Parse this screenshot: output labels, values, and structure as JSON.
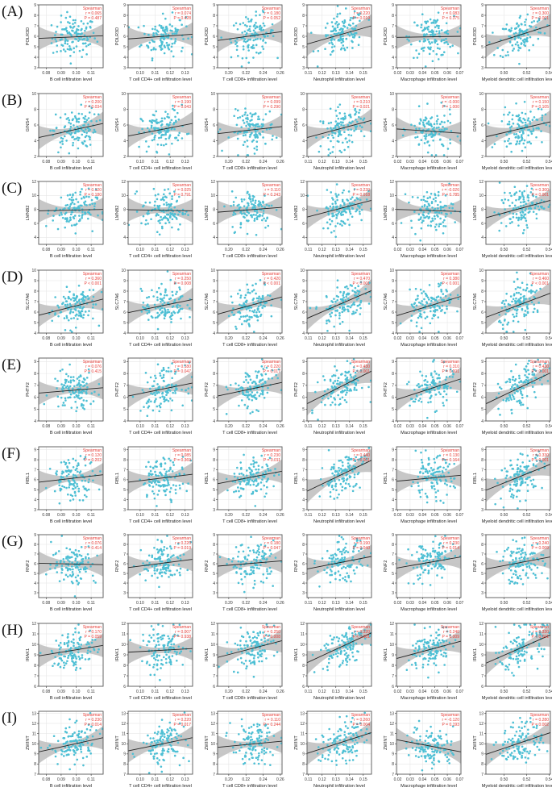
{
  "chart_data": {
    "type": "scatter",
    "layout": "grid 9 rows x 6 columns of scatter plots with linear regression line and 95% CI band",
    "point_color": "#4dbfd4",
    "line_color": "#222222",
    "band_color": "#bdbdbd",
    "annotation_color": "#e8413c",
    "grid": true,
    "method_label": "Spearman",
    "columns": [
      {
        "xlabel": "B cell infiltration level",
        "xticks": [
          "0.08",
          "0.09",
          "0.10",
          "0.11"
        ],
        "xlim": [
          0.075,
          0.118
        ]
      },
      {
        "xlabel": "T cell CD4+ cell infiltration level",
        "xticks": [
          "0.10",
          "0.11",
          "0.12",
          "0.13"
        ],
        "xlim": [
          0.092,
          0.135
        ]
      },
      {
        "xlabel": "T cell CD8+ infiltration level",
        "xticks": [
          "0.20",
          "0.22",
          "0.24",
          "0.26"
        ],
        "xlim": [
          0.187,
          0.262
        ]
      },
      {
        "xlabel": "Neutrophil infiltration level",
        "xticks": [
          "0.11",
          "0.12",
          "0.13",
          "0.14",
          "0.15"
        ],
        "xlim": [
          0.109,
          0.156
        ]
      },
      {
        "xlabel": "Macrophage infiltration level",
        "xticks": [
          "0.02",
          "0.03",
          "0.04",
          "0.05",
          "0.06",
          "0.07"
        ],
        "xlim": [
          0.019,
          0.071
        ]
      },
      {
        "xlabel": "Myeloid dendritic cell infiltration level",
        "xticks": [
          "0.50",
          "0.52",
          "0.54"
        ],
        "xlim": [
          0.484,
          0.541
        ]
      }
    ],
    "rows": [
      {
        "label": "(A)",
        "gene": "POLR3D",
        "yticks": [
          "3",
          "4",
          "5",
          "6",
          "7",
          "8",
          "9"
        ],
        "ylim": [
          3,
          9
        ],
        "stats": [
          {
            "r": "0.065",
            "p": "0.487"
          },
          {
            "r": "0.074",
            "p": "0.428"
          },
          {
            "r": "0.180",
            "p": "0.052"
          },
          {
            "r": "0.220",
            "p": "0.019"
          },
          {
            "r": "0.083",
            "p": "0.375"
          },
          {
            "r": "0.300",
            "p": "0.001"
          }
        ],
        "fit": [
          [
            5.8,
            6.05
          ],
          [
            5.75,
            6.2
          ],
          [
            5.6,
            6.45
          ],
          [
            5.25,
            7.0
          ],
          [
            5.9,
            6.0
          ],
          [
            5.1,
            7.05
          ]
        ]
      },
      {
        "label": "(B)",
        "gene": "GINS4",
        "yticks": [
          "2",
          "4",
          "6",
          "8",
          "10"
        ],
        "ylim": [
          2,
          10
        ],
        "stats": [
          {
            "r": "0.200",
            "p": "0.034"
          },
          {
            "r": "0.190",
            "p": "0.043"
          },
          {
            "r": "0.099",
            "p": "0.290"
          },
          {
            "r": "0.210",
            "p": "0.021"
          },
          {
            "r": "-0.000",
            "p": "1.000"
          },
          {
            "r": "0.150",
            "p": "0.105"
          }
        ],
        "fit": [
          [
            4.4,
            6.2
          ],
          [
            4.6,
            6.2
          ],
          [
            4.9,
            5.8
          ],
          [
            4.4,
            6.6
          ],
          [
            5.5,
            4.95
          ],
          [
            4.5,
            6.4
          ]
        ]
      },
      {
        "label": "(C)",
        "gene": "LMNB2",
        "yticks": [
          "4",
          "6",
          "8",
          "10",
          "12"
        ],
        "ylim": [
          3,
          12
        ],
        "stats": [
          {
            "r": "0.120",
            "p": "0.180"
          },
          {
            "r": "0.025",
            "p": "0.791"
          },
          {
            "r": "0.110",
            "p": "0.243"
          },
          {
            "r": "0.220",
            "p": "0.018"
          },
          {
            "r": "-0.026",
            "p": "0.785"
          },
          {
            "r": "0.300",
            "p": "0.001"
          }
        ],
        "fit": [
          [
            7.8,
            8.0
          ],
          [
            7.95,
            7.8
          ],
          [
            7.6,
            8.3
          ],
          [
            6.9,
            9.3
          ],
          [
            8.0,
            7.7
          ],
          [
            6.8,
            9.3
          ]
        ]
      },
      {
        "label": "(D)",
        "gene": "SLC7A6",
        "yticks": [
          "4",
          "5",
          "6",
          "7",
          "8",
          "9",
          "10"
        ],
        "ylim": [
          4,
          10
        ],
        "stats": [
          {
            "r": "0.360",
            "p": "< 0.001"
          },
          {
            "r": "0.250",
            "p": "0.008"
          },
          {
            "r": "0.420",
            "p": "< 0.001"
          },
          {
            "r": "0.470",
            "p": "< 0.001"
          },
          {
            "r": "0.380",
            "p": "< 0.001"
          },
          {
            "r": "0.460",
            "p": "< 0.001"
          }
        ],
        "fit": [
          [
            5.7,
            7.25
          ],
          [
            5.95,
            7.2
          ],
          [
            5.8,
            7.45
          ],
          [
            5.4,
            8.05
          ],
          [
            5.65,
            7.5
          ],
          [
            5.5,
            7.8
          ]
        ]
      },
      {
        "label": "(E)",
        "gene": "PHTF2",
        "yticks": [
          "4",
          "5",
          "6",
          "7",
          "8",
          "9"
        ],
        "ylim": [
          4,
          9.3
        ],
        "stats": [
          {
            "r": "0.076",
            "p": "0.415"
          },
          {
            "r": "0.180",
            "p": "0.047"
          },
          {
            "r": "0.220",
            "p": "0.017"
          },
          {
            "r": "0.430",
            "p": "< 0.001"
          },
          {
            "r": "0.310",
            "p": "0.001"
          },
          {
            "r": "0.430",
            "p": "< 0.001"
          }
        ],
        "fit": [
          [
            6.35,
            6.8
          ],
          [
            6.1,
            7.2
          ],
          [
            6.1,
            7.25
          ],
          [
            5.45,
            8.2
          ],
          [
            5.8,
            7.55
          ],
          [
            5.45,
            8.05
          ]
        ]
      },
      {
        "label": "(F)",
        "gene": "RBL1",
        "yticks": [
          "3",
          "4",
          "5",
          "6",
          "7",
          "8",
          "9"
        ],
        "ylim": [
          3,
          9.3
        ],
        "stats": [
          {
            "r": "0.120",
            "p": "0.202"
          },
          {
            "r": "0.085",
            "p": "0.369"
          },
          {
            "r": "0.230",
            "p": "0.011"
          },
          {
            "r": "0.440",
            "p": "< 0.001"
          },
          {
            "r": "0.130",
            "p": "0.164"
          },
          {
            "r": "0.330",
            "p": "< 0.001"
          }
        ],
        "fit": [
          [
            5.75,
            6.5
          ],
          [
            5.75,
            6.55
          ],
          [
            5.6,
            6.85
          ],
          [
            4.85,
            7.95
          ],
          [
            5.85,
            6.45
          ],
          [
            4.95,
            7.55
          ]
        ]
      },
      {
        "label": "(G)",
        "gene": "RNF2",
        "yticks": [
          "3",
          "4",
          "5",
          "6",
          "7",
          "8",
          "9"
        ],
        "ylim": [
          2.5,
          9
        ],
        "stats": [
          {
            "r": "0.076",
            "p": "0.414"
          },
          {
            "r": "0.220",
            "p": "0.019"
          },
          {
            "r": "0.180",
            "p": "0.047"
          },
          {
            "r": "0.190",
            "p": "0.040"
          },
          {
            "r": "0.230",
            "p": "0.014"
          },
          {
            "r": "0.240",
            "p": "0.009"
          }
        ],
        "fit": [
          [
            6.05,
            5.9
          ],
          [
            5.6,
            6.45
          ],
          [
            5.75,
            6.3
          ],
          [
            5.45,
            6.75
          ],
          [
            5.55,
            6.7
          ],
          [
            5.45,
            6.7
          ]
        ]
      },
      {
        "label": "(H)",
        "gene": "IRAK1",
        "yticks": [
          "6",
          "7",
          "8",
          "9",
          "10",
          "11",
          "12"
        ],
        "ylim": [
          6,
          12
        ],
        "stats": [
          {
            "r": "0.170",
            "p": "0.059"
          },
          {
            "r": "0.007",
            "p": "0.938"
          },
          {
            "r": "0.250",
            "p": "0.008"
          },
          {
            "r": "0.320",
            "p": "< 0.001"
          },
          {
            "r": "0.240",
            "p": "0.009"
          },
          {
            "r": "0.330",
            "p": "< 0.001"
          }
        ],
        "fit": [
          [
            8.9,
            9.9
          ],
          [
            9.25,
            9.6
          ],
          [
            8.75,
            10.35
          ],
          [
            8.25,
            11.1
          ],
          [
            8.65,
            10.3
          ],
          [
            8.2,
            10.9
          ]
        ]
      },
      {
        "label": "(I)",
        "gene": "ZWINT",
        "yticks": [
          "7",
          "8",
          "9",
          "10",
          "11",
          "12",
          "13"
        ],
        "ylim": [
          7,
          13.2
        ],
        "stats": [
          {
            "r": "0.230",
            "p": "0.014"
          },
          {
            "r": "0.220",
            "p": "0.017"
          },
          {
            "r": "0.110",
            "p": "0.244"
          },
          {
            "r": "0.260",
            "p": "0.004"
          },
          {
            "r": "-0.120",
            "p": "0.193"
          },
          {
            "r": "0.280",
            "p": "0.002"
          }
        ],
        "fit": [
          [
            9.2,
            10.6
          ],
          [
            9.3,
            10.6
          ],
          [
            9.65,
            10.25
          ],
          [
            9.05,
            11.1
          ],
          [
            10.4,
            9.2
          ],
          [
            8.95,
            11.1
          ]
        ]
      }
    ]
  }
}
